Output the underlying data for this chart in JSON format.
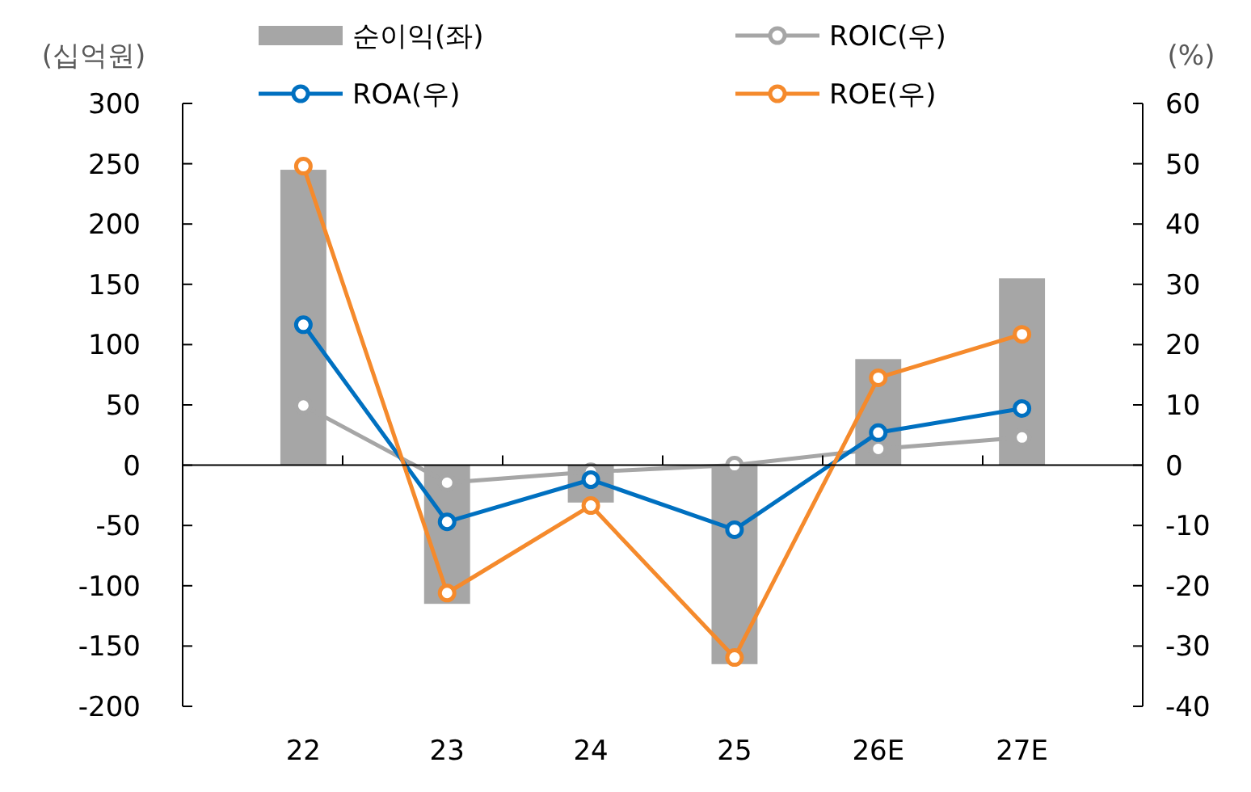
{
  "chart_data": {
    "type": "bar",
    "ylabel": "(십억원)",
    "y2label": "(%)",
    "categories": [
      "22",
      "23",
      "24",
      "25",
      "26E",
      "27E"
    ],
    "series": [
      {
        "name": "순이익(좌)",
        "color": "#a6a6a6",
        "values": [
          245,
          -115,
          -31,
          -165,
          88,
          155
        ]
      },
      {
        "name": "ROIC(우)",
        "type": "line",
        "axis": "y2",
        "color": "#a6a6a6",
        "values": [
          9.9,
          -2.9,
          -1.1,
          0,
          2.7,
          4.6
        ]
      },
      {
        "name": "ROA(우)",
        "type": "line",
        "axis": "y2",
        "color": "#0070c0",
        "values": [
          23.3,
          -9.4,
          -2.4,
          -10.7,
          5.4,
          9.4
        ]
      },
      {
        "name": "ROE(우)",
        "type": "line",
        "axis": "y2",
        "color": "#f58a2c",
        "values": [
          49.6,
          -21.2,
          -6.7,
          -31.9,
          14.5,
          21.7
        ]
      }
    ],
    "ylim": [
      -200,
      300
    ],
    "yticks": [
      -200,
      -150,
      -100,
      -50,
      0,
      50,
      100,
      150,
      200,
      250,
      300
    ],
    "y2lim": [
      -40,
      60
    ],
    "y2ticks": [
      -40,
      -30,
      -20,
      -10,
      0,
      10,
      20,
      30,
      40,
      50,
      60
    ],
    "marker": "circle",
    "line_style": "solid",
    "legend": "top"
  }
}
